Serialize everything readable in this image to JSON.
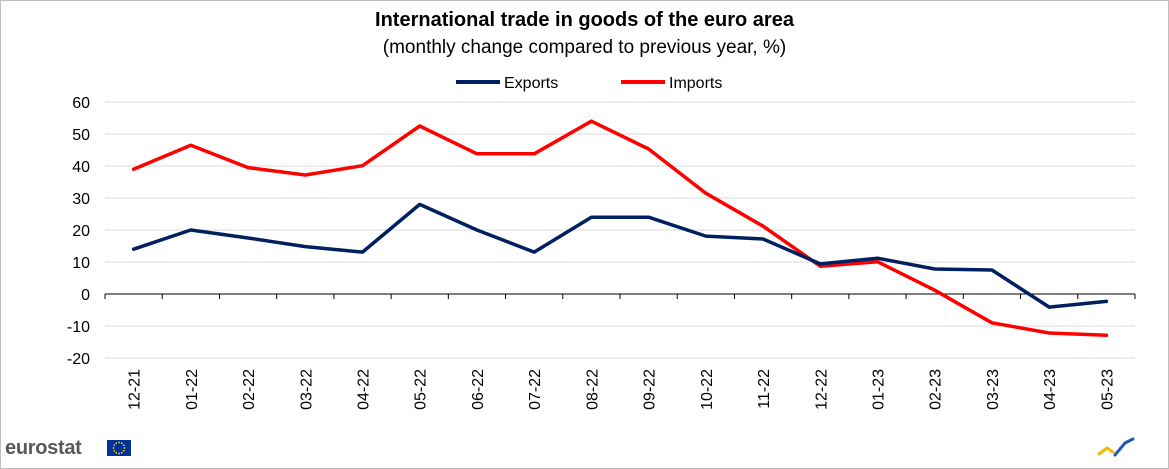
{
  "colors": {
    "exports": "#002060",
    "imports": "#ff0000",
    "grid": "#d9d9d9",
    "axis_text": "#000000"
  },
  "brand": {
    "name": "eurostat"
  },
  "chart_data": {
    "type": "line",
    "title": "International trade in goods of the euro area",
    "subtitle": "(monthly  change compared to previous year, %)",
    "xlabel": "",
    "ylabel": "",
    "ylim": [
      -20,
      60
    ],
    "yticks": [
      60,
      50,
      40,
      30,
      20,
      10,
      0,
      -10,
      -20
    ],
    "grid": true,
    "legend_position": "top-center",
    "categories": [
      "12-21",
      "01-22",
      "02-22",
      "03-22",
      "04-22",
      "05-22",
      "06-22",
      "07-22",
      "08-22",
      "09-22",
      "10-22",
      "11-22",
      "12-22",
      "01-23",
      "02-23",
      "03-23",
      "04-23",
      "05-23"
    ],
    "series": [
      {
        "name": "Exports",
        "color": "#002060",
        "values": [
          14,
          20,
          17.5,
          14.8,
          13.1,
          28,
          20,
          13.1,
          24,
          24,
          18.1,
          17.2,
          9.4,
          11.2,
          7.8,
          7.5,
          -4.1,
          -2.3
        ]
      },
      {
        "name": "Imports",
        "color": "#ff0000",
        "values": [
          39,
          46.5,
          39.5,
          37.2,
          40.1,
          52.5,
          43.8,
          43.8,
          54,
          45.3,
          31.5,
          21.2,
          8.7,
          10.1,
          1.2,
          -9,
          -12.2,
          -12.9
        ]
      }
    ]
  }
}
